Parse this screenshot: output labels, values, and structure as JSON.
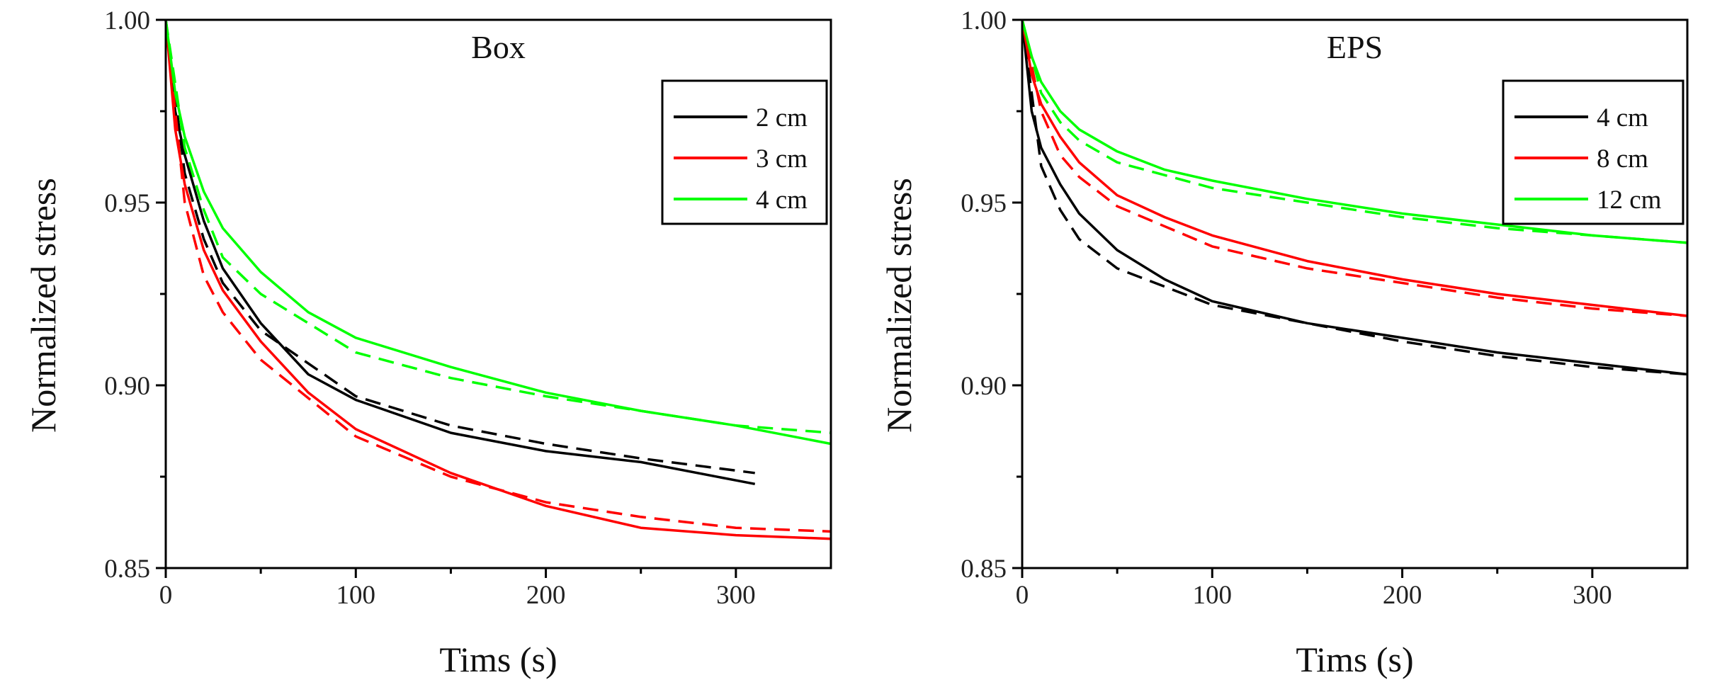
{
  "chart_data": [
    {
      "type": "line",
      "title": "Box",
      "xlabel": "Tims (s)",
      "ylabel": "Normalized stress",
      "xlim": [
        0,
        350
      ],
      "ylim": [
        0.85,
        1.0
      ],
      "xticks": [
        "0",
        "100",
        "200",
        "300"
      ],
      "yticks": [
        "0.85",
        "0.90",
        "0.95",
        "1.00"
      ],
      "legend_position": "top-right",
      "series": [
        {
          "name": "2 cm",
          "color": "#000000",
          "style": "solid",
          "legend": true,
          "x": [
            0,
            5,
            10,
            20,
            30,
            50,
            75,
            100,
            150,
            200,
            250,
            300,
            310
          ],
          "y": [
            1.0,
            0.975,
            0.963,
            0.945,
            0.932,
            0.917,
            0.903,
            0.896,
            0.887,
            0.882,
            0.879,
            0.874,
            0.873
          ]
        },
        {
          "name": "2 cm fit",
          "color": "#000000",
          "style": "dashed",
          "legend": false,
          "x": [
            0,
            10,
            20,
            30,
            50,
            100,
            150,
            200,
            250,
            310
          ],
          "y": [
            1.0,
            0.958,
            0.94,
            0.928,
            0.915,
            0.897,
            0.889,
            0.884,
            0.88,
            0.876
          ]
        },
        {
          "name": "3 cm",
          "color": "#ff0000",
          "style": "solid",
          "legend": true,
          "x": [
            0,
            5,
            10,
            20,
            30,
            50,
            75,
            100,
            150,
            200,
            250,
            300,
            350
          ],
          "y": [
            1.0,
            0.97,
            0.955,
            0.937,
            0.926,
            0.912,
            0.898,
            0.888,
            0.876,
            0.867,
            0.861,
            0.859,
            0.858
          ]
        },
        {
          "name": "3 cm fit",
          "color": "#ff0000",
          "style": "dashed",
          "legend": false,
          "x": [
            0,
            10,
            20,
            30,
            50,
            100,
            150,
            200,
            250,
            300,
            350
          ],
          "y": [
            1.0,
            0.95,
            0.93,
            0.92,
            0.907,
            0.886,
            0.875,
            0.868,
            0.864,
            0.861,
            0.86
          ]
        },
        {
          "name": "4 cm",
          "color": "#00ff00",
          "style": "solid",
          "legend": true,
          "x": [
            0,
            5,
            10,
            20,
            30,
            50,
            75,
            100,
            150,
            200,
            250,
            300,
            350
          ],
          "y": [
            1.0,
            0.98,
            0.968,
            0.953,
            0.943,
            0.931,
            0.92,
            0.913,
            0.905,
            0.898,
            0.893,
            0.889,
            0.884
          ]
        },
        {
          "name": "4 cm fit",
          "color": "#00ff00",
          "style": "dashed",
          "legend": false,
          "x": [
            0,
            10,
            20,
            30,
            50,
            100,
            150,
            200,
            250,
            300,
            350
          ],
          "y": [
            1.0,
            0.965,
            0.948,
            0.935,
            0.925,
            0.909,
            0.902,
            0.897,
            0.893,
            0.889,
            0.887
          ]
        }
      ]
    },
    {
      "type": "line",
      "title": "EPS",
      "xlabel": "Tims (s)",
      "ylabel": "Normalized stress",
      "xlim": [
        0,
        350
      ],
      "ylim": [
        0.85,
        1.0
      ],
      "xticks": [
        "0",
        "100",
        "200",
        "300"
      ],
      "yticks": [
        "0.85",
        "0.90",
        "0.95",
        "1.00"
      ],
      "legend_position": "top-right",
      "series": [
        {
          "name": "4 cm",
          "color": "#000000",
          "style": "solid",
          "legend": true,
          "x": [
            0,
            5,
            10,
            20,
            30,
            50,
            75,
            100,
            150,
            200,
            250,
            300,
            350
          ],
          "y": [
            1.0,
            0.975,
            0.965,
            0.955,
            0.947,
            0.937,
            0.929,
            0.923,
            0.917,
            0.913,
            0.909,
            0.906,
            0.903
          ]
        },
        {
          "name": "4 cm fit",
          "color": "#000000",
          "style": "dashed",
          "legend": false,
          "x": [
            0,
            10,
            20,
            30,
            50,
            100,
            150,
            200,
            250,
            300,
            350
          ],
          "y": [
            1.0,
            0.96,
            0.948,
            0.94,
            0.932,
            0.922,
            0.917,
            0.912,
            0.908,
            0.905,
            0.903
          ]
        },
        {
          "name": "8 cm",
          "color": "#ff0000",
          "style": "solid",
          "legend": true,
          "x": [
            0,
            5,
            10,
            20,
            30,
            50,
            75,
            100,
            150,
            200,
            250,
            300,
            350
          ],
          "y": [
            1.0,
            0.985,
            0.977,
            0.968,
            0.961,
            0.952,
            0.946,
            0.941,
            0.934,
            0.929,
            0.925,
            0.922,
            0.919
          ]
        },
        {
          "name": "8 cm fit",
          "color": "#ff0000",
          "style": "dashed",
          "legend": false,
          "x": [
            0,
            10,
            20,
            30,
            50,
            100,
            150,
            200,
            250,
            300,
            350
          ],
          "y": [
            1.0,
            0.975,
            0.963,
            0.957,
            0.949,
            0.938,
            0.932,
            0.928,
            0.924,
            0.921,
            0.919
          ]
        },
        {
          "name": "12 cm",
          "color": "#00ff00",
          "style": "solid",
          "legend": true,
          "x": [
            0,
            5,
            10,
            20,
            30,
            50,
            75,
            100,
            150,
            200,
            250,
            300,
            350
          ],
          "y": [
            1.0,
            0.99,
            0.983,
            0.975,
            0.97,
            0.964,
            0.959,
            0.956,
            0.951,
            0.947,
            0.944,
            0.941,
            0.939
          ]
        },
        {
          "name": "12 cm fit",
          "color": "#00ff00",
          "style": "dashed",
          "legend": false,
          "x": [
            0,
            10,
            20,
            30,
            50,
            100,
            150,
            200,
            250,
            300,
            350
          ],
          "y": [
            1.0,
            0.98,
            0.972,
            0.967,
            0.961,
            0.954,
            0.95,
            0.946,
            0.943,
            0.941,
            0.939
          ]
        }
      ]
    }
  ]
}
